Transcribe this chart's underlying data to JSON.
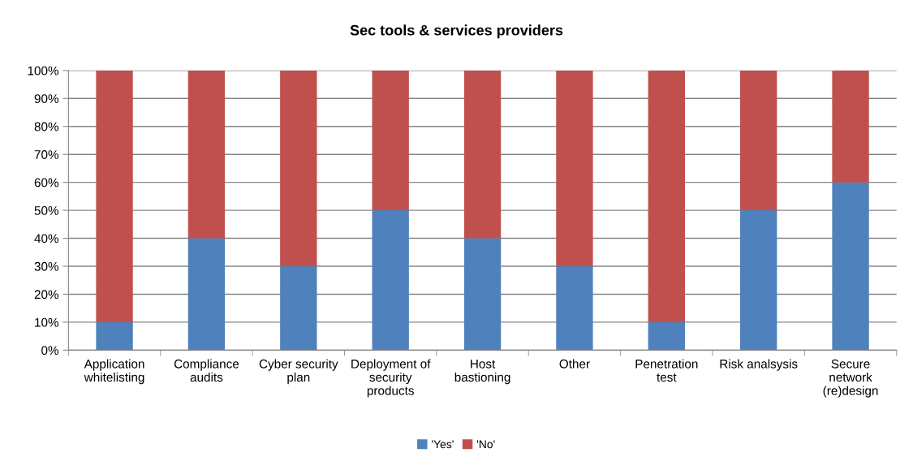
{
  "chart_data": {
    "type": "bar",
    "title": "Sec tools & services providers",
    "stacked": true,
    "categories": [
      "Application\nwhitelisting",
      "Compliance\naudits",
      "Cyber security\nplan",
      "Deployment of\nsecurity\nproducts",
      "Host\nbastioning",
      "Other",
      "Penetration\ntest",
      "Risk analsysis",
      "Secure\nnetwork\n(re)design"
    ],
    "series": [
      {
        "name": "'Yes'",
        "color": "#4f81bd",
        "values": [
          10,
          40,
          30,
          50,
          40,
          30,
          10,
          50,
          60
        ]
      },
      {
        "name": "'No'",
        "color": "#c0504d",
        "values": [
          90,
          60,
          70,
          50,
          60,
          70,
          90,
          50,
          40
        ]
      }
    ],
    "ylim": [
      0,
      100
    ],
    "yticks": [
      {
        "value": 0,
        "label": "0%"
      },
      {
        "value": 10,
        "label": "10%"
      },
      {
        "value": 20,
        "label": "20%"
      },
      {
        "value": 30,
        "label": "30%"
      },
      {
        "value": 40,
        "label": "40%"
      },
      {
        "value": 50,
        "label": "50%"
      },
      {
        "value": 60,
        "label": "60%"
      },
      {
        "value": 70,
        "label": "70%"
      },
      {
        "value": 80,
        "label": "80%"
      },
      {
        "value": 90,
        "label": "90%"
      },
      {
        "value": 100,
        "label": "100%"
      }
    ],
    "grid": "y",
    "legend": "bottom"
  }
}
